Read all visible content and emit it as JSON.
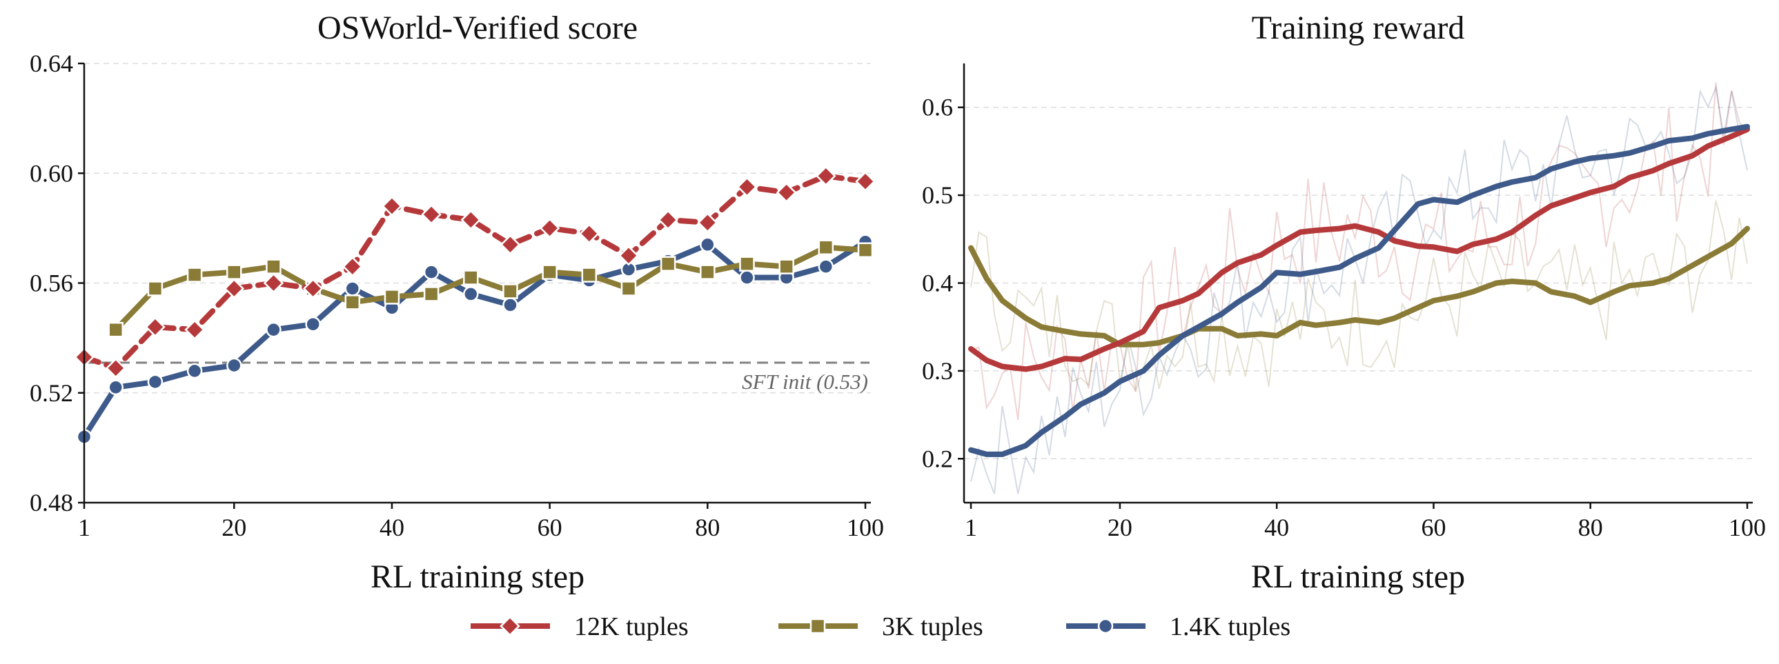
{
  "colors": {
    "s12k": "#b5393a",
    "s3k": "#8a7b36",
    "s1k": "#3d5a8a",
    "grid": "#dddddd",
    "ref": "#808080"
  },
  "legend": {
    "items": [
      {
        "label": "12K tuples",
        "color": "#b5393a",
        "marker": "diamond"
      },
      {
        "label": "3K tuples",
        "color": "#8a7b36",
        "marker": "square"
      },
      {
        "label": "1.4K tuples",
        "color": "#3d5a8a",
        "marker": "circle"
      }
    ]
  },
  "chart_data": [
    {
      "type": "line",
      "title": "OSWorld-Verified score",
      "xlabel": "RL training step",
      "ylabel": "",
      "xlim": [
        1,
        100
      ],
      "ylim": [
        0.48,
        0.64
      ],
      "xticks": [
        1,
        20,
        40,
        60,
        80,
        100
      ],
      "yticks": [
        0.48,
        0.52,
        0.56,
        0.6,
        0.64
      ],
      "ytick_labels": [
        "0.48",
        "0.52",
        "0.56",
        "0.60",
        "0.64"
      ],
      "grid": "horizontal dashed",
      "reference_line": {
        "y": 0.531,
        "label": "SFT init (0.53)"
      },
      "series": [
        {
          "name": "12K tuples",
          "color": "#b5393a",
          "marker": "diamond",
          "style": "dashed",
          "x": [
            1,
            5,
            10,
            15,
            20,
            25,
            30,
            35,
            40,
            45,
            50,
            55,
            60,
            65,
            70,
            75,
            80,
            85,
            90,
            95,
            100
          ],
          "values": [
            0.533,
            0.529,
            0.544,
            0.543,
            0.558,
            0.56,
            0.558,
            0.566,
            0.588,
            0.585,
            0.583,
            0.574,
            0.58,
            0.578,
            0.57,
            0.583,
            0.582,
            0.595,
            0.593,
            0.599,
            0.597
          ]
        },
        {
          "name": "3K tuples",
          "color": "#8a7b36",
          "marker": "square",
          "style": "solid",
          "x": [
            5,
            10,
            15,
            20,
            25,
            30,
            35,
            40,
            45,
            50,
            55,
            60,
            65,
            70,
            75,
            80,
            85,
            90,
            95,
            100
          ],
          "values": [
            0.543,
            0.558,
            0.563,
            0.564,
            0.566,
            0.558,
            0.553,
            0.555,
            0.556,
            0.562,
            0.557,
            0.564,
            0.563,
            0.558,
            0.567,
            0.564,
            0.567,
            0.566,
            0.573,
            0.572
          ]
        },
        {
          "name": "1.4K tuples",
          "color": "#3d5a8a",
          "marker": "circle",
          "style": "solid",
          "x": [
            1,
            5,
            10,
            15,
            20,
            25,
            30,
            35,
            40,
            45,
            50,
            55,
            60,
            65,
            70,
            75,
            80,
            85,
            90,
            95,
            100
          ],
          "values": [
            0.504,
            0.522,
            0.524,
            0.528,
            0.53,
            0.543,
            0.545,
            0.558,
            0.551,
            0.564,
            0.556,
            0.552,
            0.563,
            0.561,
            0.565,
            0.568,
            0.574,
            0.562,
            0.562,
            0.566,
            0.575
          ]
        }
      ]
    },
    {
      "type": "line",
      "title": "Training reward",
      "xlabel": "RL training step",
      "ylabel": "",
      "xlim": [
        1,
        100
      ],
      "ylim": [
        0.15,
        0.65
      ],
      "xticks": [
        1,
        20,
        40,
        60,
        80,
        100
      ],
      "yticks": [
        0.2,
        0.3,
        0.4,
        0.5,
        0.6
      ],
      "ytick_labels": [
        "0.2",
        "0.3",
        "0.4",
        "0.5",
        "0.6"
      ],
      "grid": "horizontal dashed",
      "series": [
        {
          "name": "12K tuples",
          "color": "#b5393a",
          "style": "smoothed",
          "x": [
            1,
            3,
            5,
            8,
            10,
            13,
            15,
            18,
            20,
            23,
            25,
            28,
            30,
            33,
            35,
            38,
            40,
            43,
            45,
            48,
            50,
            53,
            55,
            58,
            60,
            63,
            65,
            68,
            70,
            73,
            75,
            78,
            80,
            83,
            85,
            88,
            90,
            93,
            95,
            98,
            100
          ],
          "values": [
            0.325,
            0.312,
            0.305,
            0.302,
            0.305,
            0.314,
            0.313,
            0.325,
            0.332,
            0.345,
            0.372,
            0.38,
            0.388,
            0.412,
            0.423,
            0.432,
            0.443,
            0.458,
            0.46,
            0.462,
            0.465,
            0.458,
            0.448,
            0.442,
            0.441,
            0.436,
            0.444,
            0.45,
            0.458,
            0.477,
            0.488,
            0.497,
            0.503,
            0.51,
            0.52,
            0.528,
            0.536,
            0.545,
            0.556,
            0.567,
            0.575
          ]
        },
        {
          "name": "3K tuples",
          "color": "#8a7b36",
          "style": "smoothed",
          "x": [
            1,
            3,
            5,
            8,
            10,
            13,
            15,
            18,
            20,
            23,
            25,
            28,
            30,
            33,
            35,
            38,
            40,
            43,
            45,
            48,
            50,
            53,
            55,
            58,
            60,
            63,
            65,
            68,
            70,
            73,
            75,
            78,
            80,
            83,
            85,
            88,
            90,
            93,
            95,
            98,
            100
          ],
          "values": [
            0.44,
            0.405,
            0.38,
            0.36,
            0.35,
            0.345,
            0.342,
            0.34,
            0.33,
            0.33,
            0.332,
            0.34,
            0.348,
            0.348,
            0.34,
            0.342,
            0.34,
            0.355,
            0.352,
            0.355,
            0.358,
            0.355,
            0.36,
            0.372,
            0.38,
            0.385,
            0.39,
            0.4,
            0.402,
            0.4,
            0.39,
            0.385,
            0.378,
            0.39,
            0.397,
            0.4,
            0.405,
            0.42,
            0.43,
            0.445,
            0.462
          ]
        },
        {
          "name": "1.4K tuples",
          "color": "#3d5a8a",
          "style": "smoothed",
          "x": [
            1,
            3,
            5,
            8,
            10,
            13,
            15,
            18,
            20,
            23,
            25,
            28,
            30,
            33,
            35,
            38,
            40,
            43,
            45,
            48,
            50,
            53,
            55,
            58,
            60,
            63,
            65,
            68,
            70,
            73,
            75,
            78,
            80,
            83,
            85,
            88,
            90,
            93,
            95,
            98,
            100
          ],
          "values": [
            0.21,
            0.205,
            0.205,
            0.215,
            0.23,
            0.248,
            0.262,
            0.275,
            0.288,
            0.3,
            0.318,
            0.34,
            0.35,
            0.365,
            0.378,
            0.395,
            0.412,
            0.41,
            0.413,
            0.418,
            0.428,
            0.44,
            0.46,
            0.49,
            0.495,
            0.492,
            0.5,
            0.51,
            0.515,
            0.52,
            0.53,
            0.538,
            0.542,
            0.545,
            0.548,
            0.556,
            0.562,
            0.565,
            0.57,
            0.575,
            0.578
          ]
        }
      ]
    }
  ]
}
